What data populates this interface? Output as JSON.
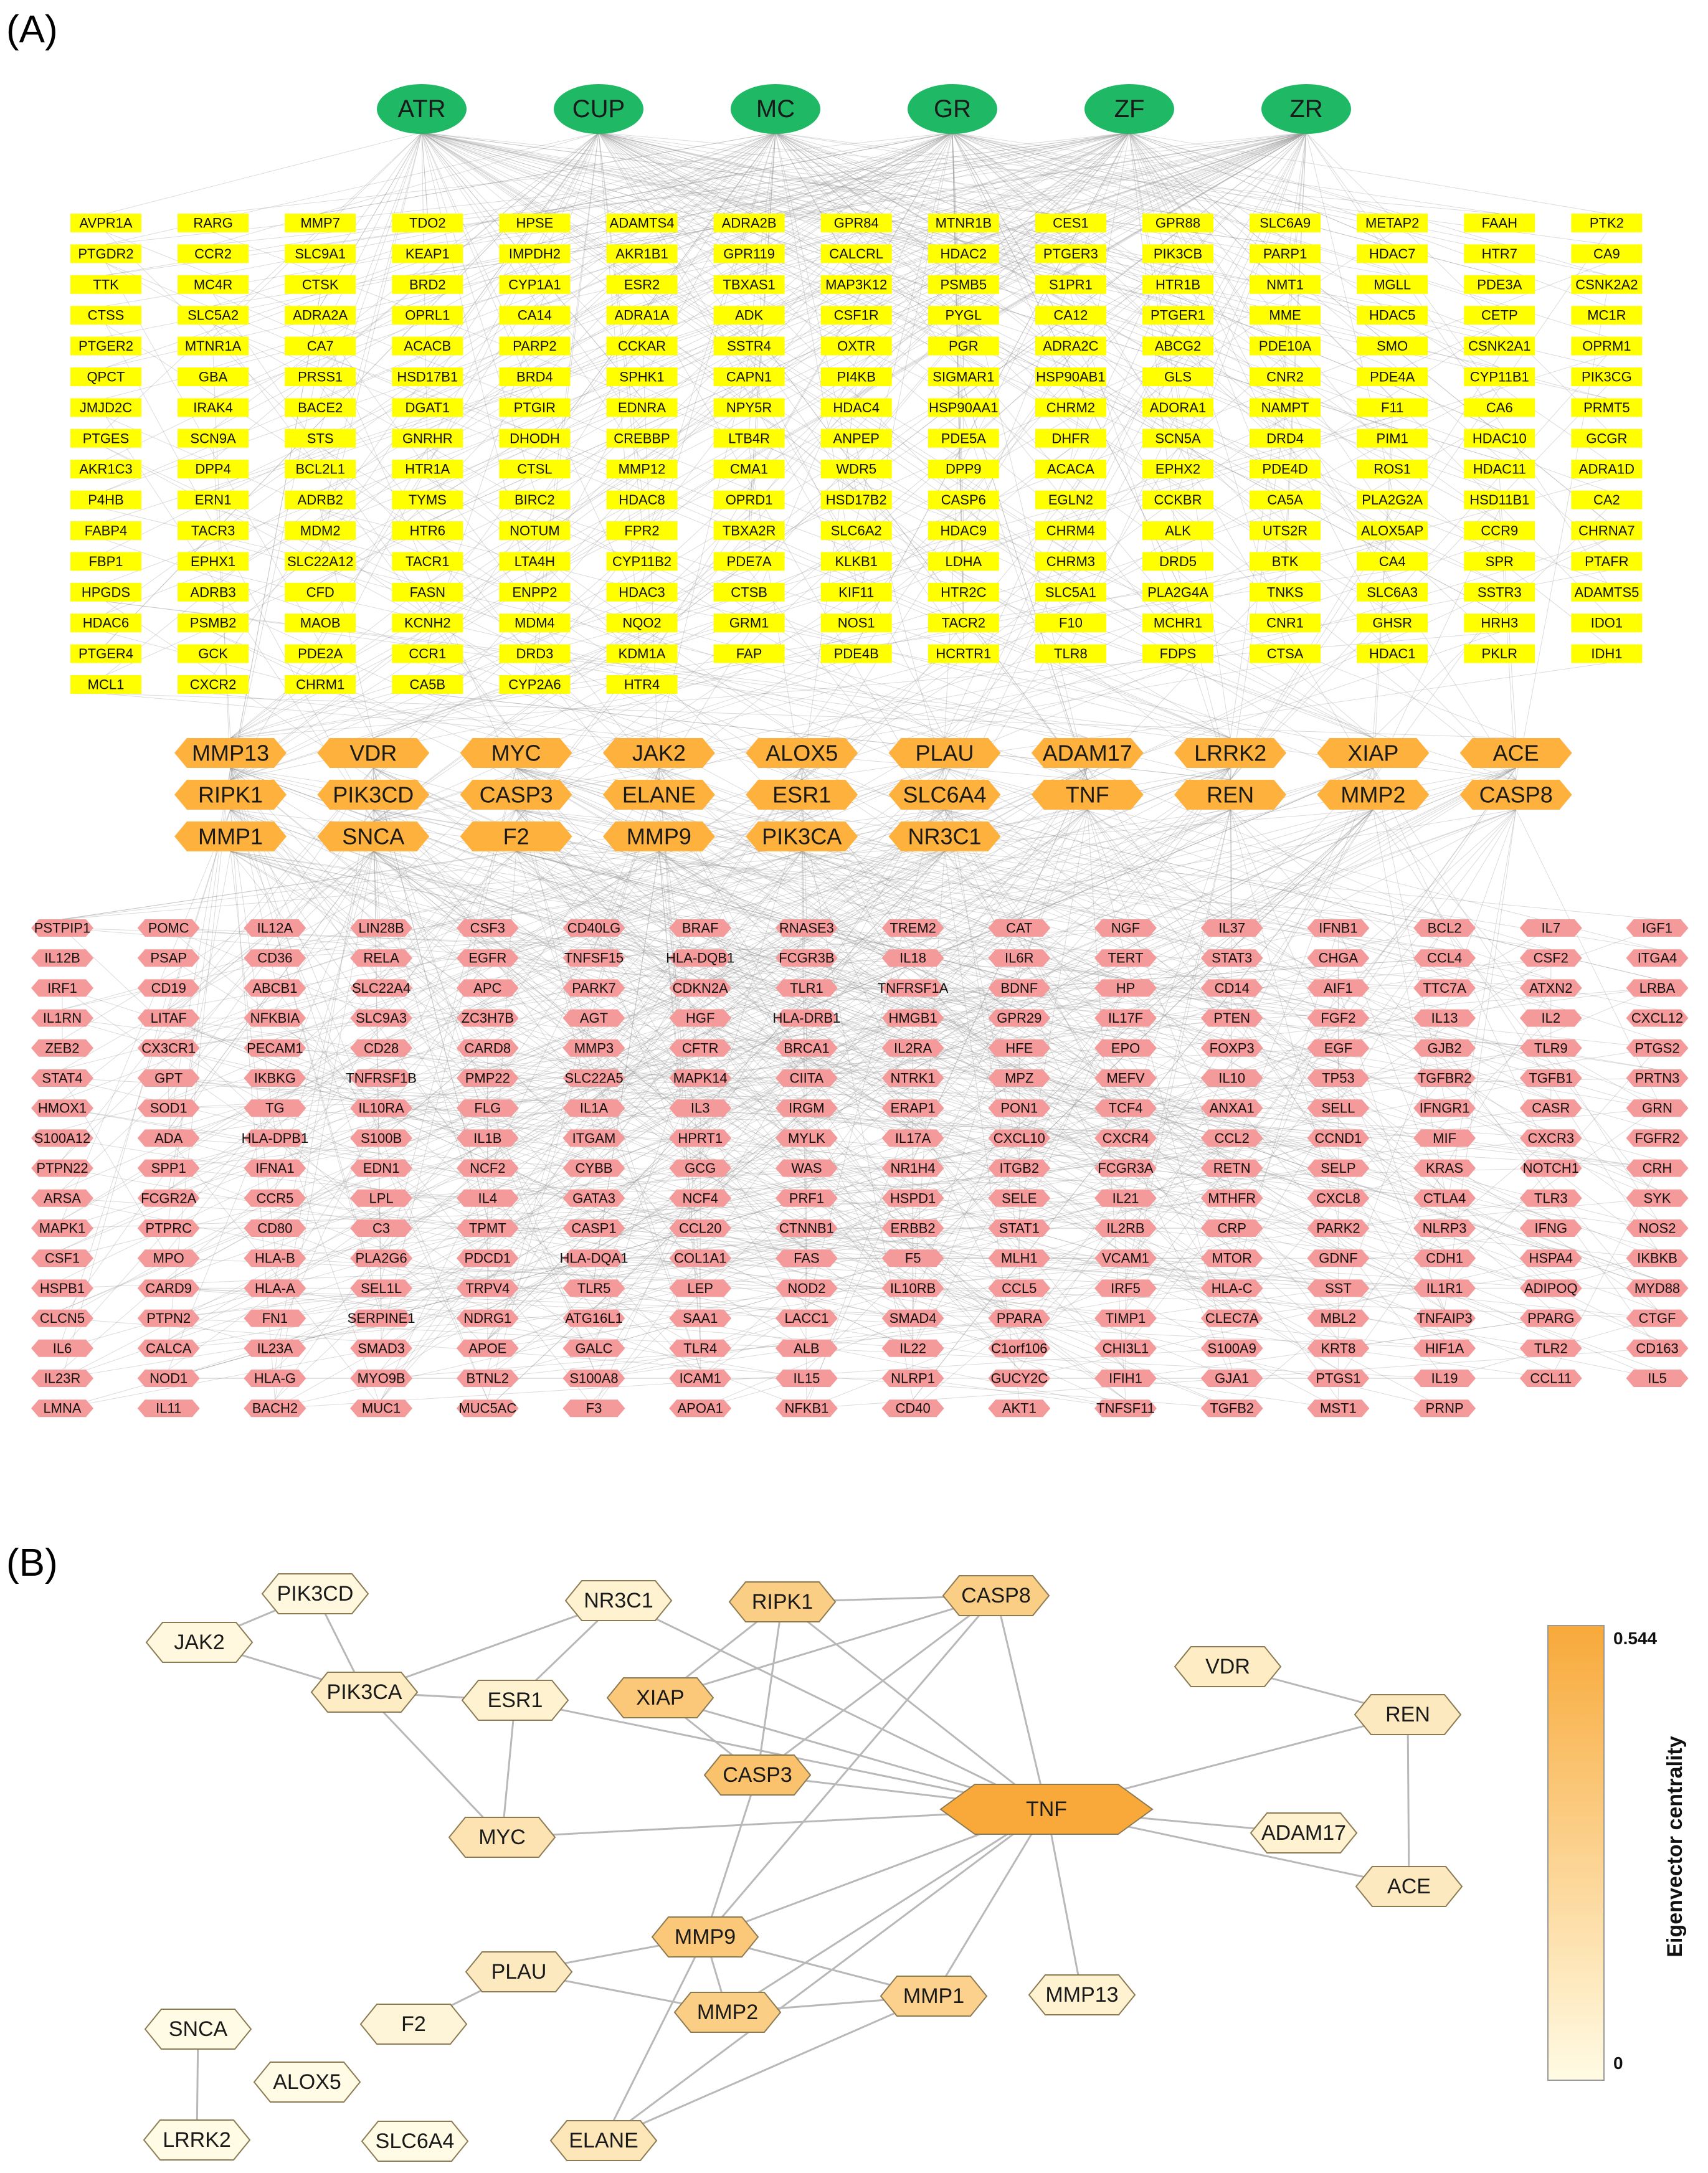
{
  "panels": {
    "a_label": "(A)",
    "b_label": "(B)"
  },
  "colors": {
    "herb": "#1fb865",
    "compound": "#ffff00",
    "hub": "#ffb13d",
    "disease_target": "#f59a9a",
    "colorbar_high": "#f8a93a",
    "colorbar_low": "#fffbe4"
  },
  "herbs": [
    "ATR",
    "CUP",
    "MC",
    "GR",
    "ZF",
    "ZR"
  ],
  "compounds": [
    [
      "AVPR1A",
      "PTGDR2",
      "TTK",
      "CTSS",
      "PTGER2",
      "QPCT",
      "JMJD2C",
      "PTGES",
      "AKR1C3",
      "P4HB",
      "FABP4",
      "FBP1",
      "HPGDS",
      "HDAC6",
      "PTGER4",
      "MCL1"
    ],
    [
      "RARG",
      "CCR2",
      "MC4R",
      "SLC5A2",
      "MTNR1A",
      "GBA",
      "IRAK4",
      "SCN9A",
      "DPP4",
      "ERN1",
      "TACR3",
      "EPHX1",
      "ADRB3",
      "PSMB2",
      "GCK",
      "CXCR2"
    ],
    [
      "MMP7",
      "SLC9A1",
      "CTSK",
      "ADRA2A",
      "CA7",
      "PRSS1",
      "BACE2",
      "STS",
      "BCL2L1",
      "ADRB2",
      "MDM2",
      "SLC22A12",
      "CFD",
      "MAOB",
      "PDE2A",
      "CHRM1"
    ],
    [
      "TDO2",
      "KEAP1",
      "BRD2",
      "OPRL1",
      "ACACB",
      "HSD17B1",
      "DGAT1",
      "GNRHR",
      "HTR1A",
      "TYMS",
      "HTR6",
      "TACR1",
      "FASN",
      "KCNH2",
      "CCR1",
      "CA5B"
    ],
    [
      "HPSE",
      "IMPDH2",
      "CYP1A1",
      "CA14",
      "PARP2",
      "BRD4",
      "PTGIR",
      "DHODH",
      "CTSL",
      "BIRC2",
      "NOTUM",
      "LTA4H",
      "ENPP2",
      "MDM4",
      "DRD3",
      "CYP2A6"
    ],
    [
      "ADAMTS4",
      "AKR1B1",
      "ESR2",
      "ADRA1A",
      "CCKAR",
      "SPHK1",
      "EDNRA",
      "CREBBP",
      "MMP12",
      "HDAC8",
      "FPR2",
      "CYP11B2",
      "HDAC3",
      "NQO2",
      "KDM1A",
      "HTR4"
    ],
    [
      "ADRA2B",
      "GPR119",
      "TBXAS1",
      "ADK",
      "SSTR4",
      "CAPN1",
      "NPY5R",
      "LTB4R",
      "CMA1",
      "OPRD1",
      "TBXA2R",
      "PDE7A",
      "CTSB",
      "GRM1",
      "FAP"
    ],
    [
      "GPR84",
      "CALCRL",
      "MAP3K12",
      "CSF1R",
      "OXTR",
      "PI4KB",
      "HDAC4",
      "ANPEP",
      "WDR5",
      "HSD17B2",
      "SLC6A2",
      "KLKB1",
      "KIF11",
      "NOS1",
      "PDE4B"
    ],
    [
      "MTNR1B",
      "HDAC2",
      "PSMB5",
      "PYGL",
      "PGR",
      "SIGMAR1",
      "HSP90AA1",
      "PDE5A",
      "DPP9",
      "CASP6",
      "HDAC9",
      "LDHA",
      "HTR2C",
      "TACR2",
      "HCRTR1"
    ],
    [
      "CES1",
      "PTGER3",
      "S1PR1",
      "CA12",
      "ADRA2C",
      "HSP90AB1",
      "CHRM2",
      "DHFR",
      "ACACA",
      "EGLN2",
      "CHRM4",
      "CHRM3",
      "SLC5A1",
      "F10",
      "TLR8"
    ],
    [
      "GPR88",
      "PIK3CB",
      "HTR1B",
      "PTGER1",
      "ABCG2",
      "GLS",
      "ADORA1",
      "SCN5A",
      "EPHX2",
      "CCKBR",
      "ALK",
      "DRD5",
      "PLA2G4A",
      "MCHR1",
      "FDPS"
    ],
    [
      "SLC6A9",
      "PARP1",
      "NMT1",
      "MME",
      "PDE10A",
      "CNR2",
      "NAMPT",
      "DRD4",
      "PDE4D",
      "CA5A",
      "UTS2R",
      "BTK",
      "TNKS",
      "CNR1",
      "CTSA"
    ],
    [
      "METAP2",
      "HDAC7",
      "MGLL",
      "HDAC5",
      "SMO",
      "PDE4A",
      "F11",
      "PIM1",
      "ROS1",
      "PLA2G2A",
      "ALOX5AP",
      "CA4",
      "SLC6A3",
      "GHSR",
      "HDAC1"
    ],
    [
      "FAAH",
      "HTR7",
      "PDE3A",
      "CETP",
      "CSNK2A1",
      "CYP11B1",
      "CA6",
      "HDAC10",
      "HDAC11",
      "HSD11B1",
      "CCR9",
      "SPR",
      "SSTR3",
      "HRH3",
      "PKLR"
    ],
    [
      "PTK2",
      "CA9",
      "CSNK2A2",
      "MC1R",
      "OPRM1",
      "PIK3CG",
      "PRMT5",
      "GCGR",
      "ADRA1D",
      "CA2",
      "CHRNA7",
      "PTAFR",
      "ADAMTS5",
      "IDO1",
      "IDH1"
    ]
  ],
  "hub_targets": [
    [
      "MMP13",
      "VDR",
      "MYC",
      "JAK2",
      "ALOX5",
      "PLAU",
      "ADAM17",
      "LRRK2",
      "XIAP",
      "ACE"
    ],
    [
      "RIPK1",
      "PIK3CD",
      "CASP3",
      "ELANE",
      "ESR1",
      "SLC6A4",
      "TNF",
      "REN",
      "MMP2",
      "CASP8"
    ],
    [
      "MMP1",
      "SNCA",
      "F2",
      "MMP9",
      "PIK3CA",
      "NR3C1"
    ]
  ],
  "disease_targets": [
    [
      "PSTPIP1",
      "POMC",
      "IL12A",
      "LIN28B",
      "CSF3",
      "CD40LG",
      "BRAF",
      "RNASE3",
      "TREM2",
      "CAT",
      "NGF",
      "IL37",
      "IFNB1",
      "BCL2",
      "IL7",
      "IGF1"
    ],
    [
      "IL12B",
      "PSAP",
      "CD36",
      "RELA",
      "EGFR",
      "TNFSF15",
      "HLA-DQB1",
      "FCGR3B",
      "IL18",
      "IL6R",
      "TERT",
      "STAT3",
      "CHGA",
      "CCL4",
      "CSF2",
      "ITGA4"
    ],
    [
      "IRF1",
      "CD19",
      "ABCB1",
      "SLC22A4",
      "APC",
      "PARK7",
      "CDKN2A",
      "TLR1",
      "TNFRSF1A",
      "BDNF",
      "HP",
      "CD14",
      "AIF1",
      "TTC7A",
      "ATXN2",
      "LRBA"
    ],
    [
      "IL1RN",
      "LITAF",
      "NFKBIA",
      "SLC9A3",
      "ZC3H7B",
      "AGT",
      "HGF",
      "HLA-DRB1",
      "HMGB1",
      "GPR29",
      "IL17F",
      "PTEN",
      "FGF2",
      "IL13",
      "IL2",
      "CXCL12"
    ],
    [
      "ZEB2",
      "CX3CR1",
      "PECAM1",
      "CD28",
      "CARD8",
      "MMP3",
      "CFTR",
      "BRCA1",
      "IL2RA",
      "HFE",
      "EPO",
      "FOXP3",
      "EGF",
      "GJB2",
      "TLR9",
      "PTGS2"
    ],
    [
      "STAT4",
      "GPT",
      "IKBKG",
      "TNFRSF1B",
      "PMP22",
      "SLC22A5",
      "MAPK14",
      "CIITA",
      "NTRK1",
      "MPZ",
      "MEFV",
      "IL10",
      "TP53",
      "TGFBR2",
      "TGFB1",
      "PRTN3"
    ],
    [
      "HMOX1",
      "SOD1",
      "TG",
      "IL10RA",
      "FLG",
      "IL1A",
      "IL3",
      "IRGM",
      "ERAP1",
      "PON1",
      "TCF4",
      "ANXA1",
      "SELL",
      "IFNGR1",
      "CASR",
      "GRN"
    ],
    [
      "S100A12",
      "ADA",
      "HLA-DPB1",
      "S100B",
      "IL1B",
      "ITGAM",
      "HPRT1",
      "MYLK",
      "IL17A",
      "CXCL10",
      "CXCR4",
      "CCL2",
      "CCND1",
      "MIF",
      "CXCR3",
      "FGFR2"
    ],
    [
      "PTPN22",
      "SPP1",
      "IFNA1",
      "EDN1",
      "NCF2",
      "CYBB",
      "GCG",
      "WAS",
      "NR1H4",
      "ITGB2",
      "FCGR3A",
      "RETN",
      "SELP",
      "KRAS",
      "NOTCH1",
      "CRH"
    ],
    [
      "ARSA",
      "FCGR2A",
      "CCR5",
      "LPL",
      "IL4",
      "GATA3",
      "NCF4",
      "PRF1",
      "HSPD1",
      "SELE",
      "IL21",
      "MTHFR",
      "CXCL8",
      "CTLA4",
      "TLR3",
      "SYK"
    ],
    [
      "MAPK1",
      "PTPRC",
      "CD80",
      "C3",
      "TPMT",
      "CASP1",
      "CCL20",
      "CTNNB1",
      "ERBB2",
      "STAT1",
      "IL2RB",
      "CRP",
      "PARK2",
      "NLRP3",
      "IFNG",
      "NOS2"
    ],
    [
      "CSF1",
      "MPO",
      "HLA-B",
      "PLA2G6",
      "PDCD1",
      "HLA-DQA1",
      "COL1A1",
      "FAS",
      "F5",
      "MLH1",
      "VCAM1",
      "MTOR",
      "GDNF",
      "CDH1",
      "HSPA4",
      "IKBKB"
    ],
    [
      "HSPB1",
      "CARD9",
      "HLA-A",
      "SEL1L",
      "TRPV4",
      "TLR5",
      "LEP",
      "NOD2",
      "IL10RB",
      "CCL5",
      "IRF5",
      "HLA-C",
      "SST",
      "IL1R1",
      "ADIPOQ",
      "MYD88"
    ],
    [
      "CLCN5",
      "PTPN2",
      "FN1",
      "SERPINE1",
      "NDRG1",
      "ATG16L1",
      "SAA1",
      "LACC1",
      "SMAD4",
      "PPARA",
      "TIMP1",
      "CLEC7A",
      "MBL2",
      "TNFAIP3",
      "PPARG",
      "CTGF"
    ],
    [
      "IL6",
      "CALCA",
      "IL23A",
      "SMAD3",
      "APOE",
      "GALC",
      "TLR4",
      "ALB",
      "IL22",
      "C1orf106",
      "CHI3L1",
      "S100A9",
      "KRT8",
      "HIF1A",
      "TLR2",
      "CD163"
    ],
    [
      "IL23R",
      "NOD1",
      "HLA-G",
      "MYO9B",
      "BTNL2",
      "S100A8",
      "ICAM1",
      "IL15",
      "NLRP1",
      "GUCY2C",
      "IFIH1",
      "GJA1",
      "PTGS1",
      "IL19",
      "CCL11",
      "IL5"
    ],
    [
      "LMNA",
      "IL11",
      "BACH2",
      "MUC1",
      "MUC5AC",
      "F3",
      "APOA1",
      "NFKB1",
      "CD40",
      "AKT1",
      "TNFSF11",
      "TGFB2",
      "MST1",
      "PRNP"
    ]
  ],
  "ppi": {
    "nodes": [
      {
        "id": "PIK3CD",
        "centrality": 0.02
      },
      {
        "id": "JAK2",
        "centrality": 0.02
      },
      {
        "id": "PIK3CA",
        "centrality": 0.1
      },
      {
        "id": "NR3C1",
        "centrality": 0.06
      },
      {
        "id": "ESR1",
        "centrality": 0.06
      },
      {
        "id": "RIPK1",
        "centrality": 0.3
      },
      {
        "id": "CASP8",
        "centrality": 0.3
      },
      {
        "id": "XIAP",
        "centrality": 0.34
      },
      {
        "id": "CASP3",
        "centrality": 0.38
      },
      {
        "id": "MYC",
        "centrality": 0.16
      },
      {
        "id": "TNF",
        "centrality": 0.544
      },
      {
        "id": "VDR",
        "centrality": 0.1
      },
      {
        "id": "REN",
        "centrality": 0.12
      },
      {
        "id": "ADAM17",
        "centrality": 0.06
      },
      {
        "id": "ACE",
        "centrality": 0.12
      },
      {
        "id": "MMP9",
        "centrality": 0.34
      },
      {
        "id": "PLAU",
        "centrality": 0.12
      },
      {
        "id": "F2",
        "centrality": 0.04
      },
      {
        "id": "MMP2",
        "centrality": 0.3
      },
      {
        "id": "MMP1",
        "centrality": 0.28
      },
      {
        "id": "MMP13",
        "centrality": 0.06
      },
      {
        "id": "SNCA",
        "centrality": 0.0
      },
      {
        "id": "ALOX5",
        "centrality": 0.0
      },
      {
        "id": "LRRK2",
        "centrality": 0.0
      },
      {
        "id": "SLC6A4",
        "centrality": 0.0
      },
      {
        "id": "ELANE",
        "centrality": 0.14
      }
    ],
    "edges": [
      [
        "JAK2",
        "PIK3CD"
      ],
      [
        "JAK2",
        "PIK3CA"
      ],
      [
        "PIK3CD",
        "PIK3CA"
      ],
      [
        "PIK3CA",
        "ESR1"
      ],
      [
        "PIK3CA",
        "NR3C1"
      ],
      [
        "PIK3CA",
        "MYC"
      ],
      [
        "NR3C1",
        "ESR1"
      ],
      [
        "NR3C1",
        "TNF"
      ],
      [
        "ESR1",
        "MYC"
      ],
      [
        "ESR1",
        "TNF"
      ],
      [
        "RIPK1",
        "CASP8"
      ],
      [
        "RIPK1",
        "XIAP"
      ],
      [
        "RIPK1",
        "CASP3"
      ],
      [
        "RIPK1",
        "TNF"
      ],
      [
        "CASP8",
        "XIAP"
      ],
      [
        "CASP8",
        "CASP3"
      ],
      [
        "CASP8",
        "TNF"
      ],
      [
        "XIAP",
        "CASP3"
      ],
      [
        "XIAP",
        "TNF"
      ],
      [
        "CASP3",
        "TNF"
      ],
      [
        "CASP3",
        "MMP9"
      ],
      [
        "MYC",
        "TNF"
      ],
      [
        "VDR",
        "REN"
      ],
      [
        "REN",
        "ACE"
      ],
      [
        "TNF",
        "REN"
      ],
      [
        "TNF",
        "ADAM17"
      ],
      [
        "TNF",
        "ACE"
      ],
      [
        "TNF",
        "MMP9"
      ],
      [
        "TNF",
        "MMP13"
      ],
      [
        "TNF",
        "MMP1"
      ],
      [
        "TNF",
        "MMP2"
      ],
      [
        "TNF",
        "ELANE"
      ],
      [
        "MMP9",
        "PLAU"
      ],
      [
        "MMP9",
        "MMP2"
      ],
      [
        "MMP9",
        "MMP1"
      ],
      [
        "MMP9",
        "ELANE"
      ],
      [
        "PLAU",
        "F2"
      ],
      [
        "PLAU",
        "MMP2"
      ],
      [
        "MMP2",
        "MMP1"
      ],
      [
        "MMP1",
        "ELANE"
      ],
      [
        "SNCA",
        "LRRK2"
      ],
      [
        "CASP8",
        "MMP9"
      ]
    ]
  },
  "colorbar": {
    "title": "Eigenvector centrality",
    "max_label": "0.544",
    "min_label": "0",
    "max_value": 0.544
  }
}
